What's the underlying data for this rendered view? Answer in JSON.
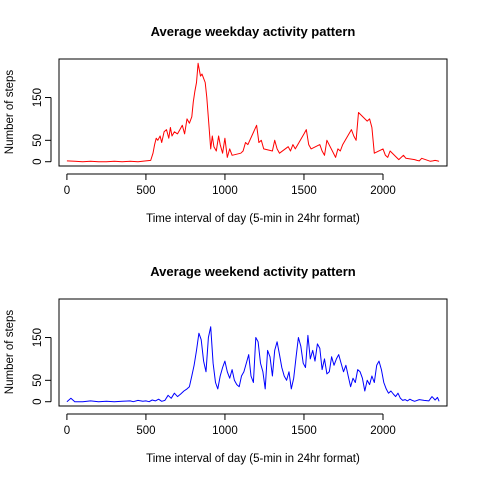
{
  "chart_data": [
    {
      "type": "line",
      "title": "Average weekday activity pattern",
      "xlabel": "Time interval of day (5-min in 24hr format)",
      "ylabel": "Number of steps",
      "xlim": [
        -50,
        2405
      ],
      "ylim": [
        -10,
        240
      ],
      "xticks": [
        0,
        500,
        1000,
        1500,
        2000
      ],
      "yticks": [
        0,
        50,
        150
      ],
      "grid": false,
      "series": [
        {
          "color": "#ff0000",
          "x": [
            0,
            50,
            100,
            150,
            200,
            250,
            300,
            350,
            400,
            450,
            500,
            530,
            545,
            555,
            565,
            575,
            590,
            600,
            615,
            630,
            645,
            655,
            665,
            680,
            700,
            715,
            730,
            745,
            760,
            775,
            790,
            800,
            810,
            820,
            830,
            835,
            845,
            855,
            865,
            875,
            885,
            900,
            910,
            920,
            930,
            945,
            960,
            970,
            985,
            1000,
            1015,
            1030,
            1045,
            1100,
            1115,
            1130,
            1145,
            1200,
            1215,
            1230,
            1245,
            1300,
            1315,
            1330,
            1345,
            1400,
            1415,
            1430,
            1445,
            1500,
            1515,
            1530,
            1545,
            1600,
            1615,
            1630,
            1645,
            1700,
            1715,
            1730,
            1745,
            1800,
            1815,
            1830,
            1845,
            1900,
            1915,
            1930,
            1945,
            2000,
            2015,
            2030,
            2045,
            2100,
            2115,
            2130,
            2145,
            2200,
            2215,
            2230,
            2245,
            2300,
            2315,
            2330,
            2345,
            2355
          ],
          "y": [
            2,
            1,
            0,
            1,
            0,
            0,
            1,
            0,
            1,
            0,
            2,
            3,
            20,
            40,
            55,
            50,
            60,
            45,
            70,
            75,
            55,
            80,
            60,
            70,
            65,
            75,
            85,
            65,
            100,
            90,
            105,
            140,
            165,
            185,
            230,
            220,
            200,
            205,
            195,
            185,
            150,
            80,
            30,
            60,
            35,
            25,
            60,
            40,
            20,
            55,
            10,
            30,
            15,
            20,
            25,
            45,
            40,
            85,
            45,
            50,
            30,
            25,
            50,
            30,
            20,
            35,
            25,
            40,
            30,
            65,
            75,
            40,
            30,
            40,
            25,
            15,
            50,
            10,
            30,
            25,
            40,
            75,
            60,
            50,
            115,
            95,
            100,
            80,
            20,
            30,
            15,
            10,
            25,
            5,
            10,
            15,
            8,
            5,
            3,
            2,
            8,
            1,
            2,
            3,
            2,
            1
          ]
        }
      ]
    },
    {
      "type": "line",
      "title": "Average weekend activity pattern",
      "xlabel": "Time interval of day (5-min in 24hr format)",
      "ylabel": "Number of steps",
      "xlim": [
        -50,
        2405
      ],
      "ylim": [
        -10,
        240
      ],
      "xticks": [
        0,
        500,
        1000,
        1500,
        2000
      ],
      "yticks": [
        0,
        50,
        150
      ],
      "grid": false,
      "series": [
        {
          "color": "#0000ff",
          "x": [
            0,
            25,
            50,
            100,
            150,
            200,
            250,
            300,
            350,
            400,
            420,
            450,
            480,
            500,
            520,
            540,
            560,
            580,
            600,
            620,
            640,
            660,
            680,
            700,
            720,
            740,
            760,
            775,
            790,
            805,
            820,
            835,
            850,
            865,
            880,
            895,
            910,
            925,
            940,
            955,
            970,
            985,
            1000,
            1015,
            1030,
            1045,
            1060,
            1075,
            1090,
            1105,
            1120,
            1135,
            1150,
            1165,
            1180,
            1195,
            1210,
            1225,
            1240,
            1255,
            1270,
            1285,
            1300,
            1315,
            1330,
            1345,
            1360,
            1375,
            1390,
            1405,
            1420,
            1435,
            1450,
            1465,
            1480,
            1495,
            1510,
            1525,
            1540,
            1555,
            1570,
            1585,
            1600,
            1615,
            1630,
            1645,
            1660,
            1675,
            1690,
            1705,
            1720,
            1735,
            1750,
            1765,
            1780,
            1795,
            1810,
            1825,
            1840,
            1855,
            1870,
            1885,
            1900,
            1915,
            1930,
            1945,
            1960,
            1975,
            1990,
            2005,
            2020,
            2035,
            2050,
            2065,
            2080,
            2095,
            2110,
            2125,
            2140,
            2155,
            2170,
            2185,
            2200,
            2230,
            2260,
            2290,
            2310,
            2330,
            2345,
            2355
          ],
          "y": [
            0,
            8,
            0,
            0,
            2,
            0,
            1,
            0,
            1,
            2,
            0,
            3,
            1,
            2,
            0,
            4,
            2,
            6,
            1,
            3,
            15,
            8,
            20,
            12,
            18,
            25,
            30,
            35,
            60,
            85,
            120,
            160,
            145,
            95,
            70,
            150,
            175,
            90,
            45,
            30,
            60,
            80,
            95,
            70,
            55,
            75,
            50,
            40,
            35,
            60,
            70,
            90,
            110,
            60,
            45,
            150,
            140,
            90,
            70,
            30,
            120,
            105,
            60,
            120,
            140,
            110,
            80,
            60,
            50,
            70,
            30,
            55,
            105,
            150,
            130,
            90,
            80,
            155,
            100,
            120,
            95,
            135,
            125,
            75,
            100,
            65,
            70,
            105,
            85,
            100,
            110,
            90,
            70,
            85,
            60,
            35,
            55,
            45,
            75,
            70,
            55,
            25,
            50,
            40,
            60,
            45,
            85,
            95,
            75,
            45,
            30,
            20,
            25,
            18,
            12,
            20,
            8,
            3,
            5,
            2,
            6,
            3,
            1,
            5,
            3,
            2,
            12,
            4,
            10,
            1
          ]
        }
      ]
    }
  ]
}
